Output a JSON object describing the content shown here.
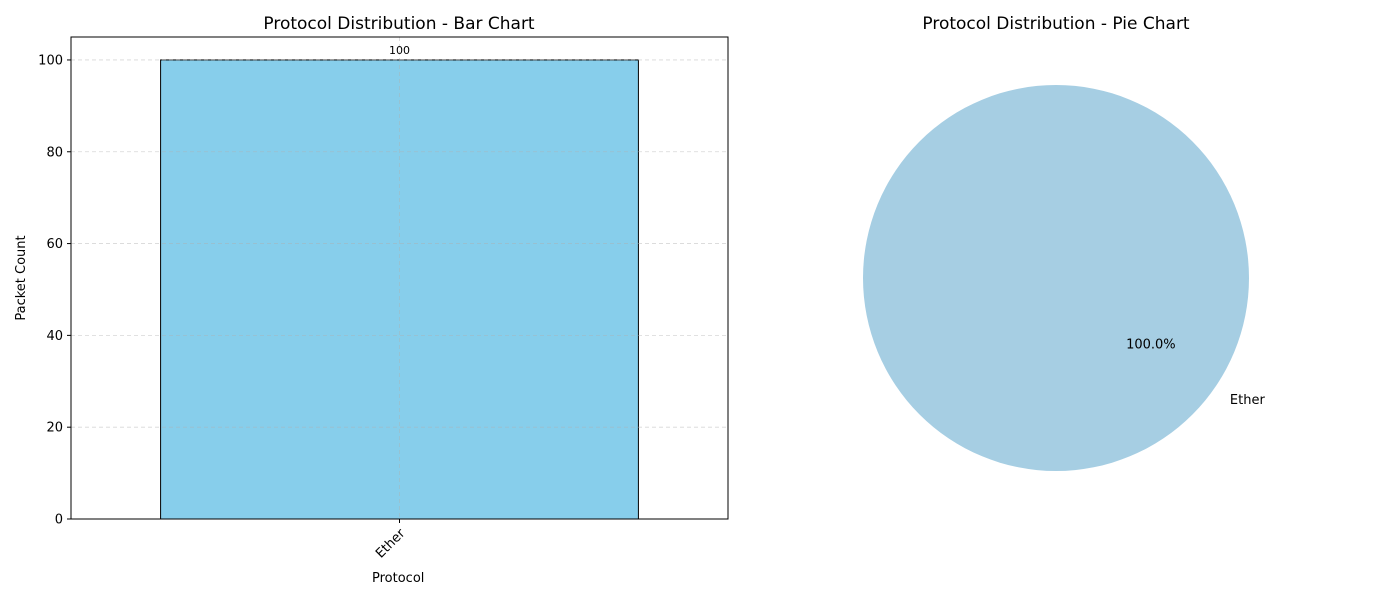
{
  "chart_data": [
    {
      "type": "bar",
      "title": "Protocol Distribution - Bar Chart",
      "xlabel": "Protocol",
      "ylabel": "Packet Count",
      "categories": [
        "Ether"
      ],
      "values": [
        100
      ],
      "value_labels": [
        "100"
      ],
      "ylim": [
        0,
        105
      ],
      "yticks": [
        0,
        20,
        40,
        60,
        80,
        100
      ],
      "grid": true,
      "bar_color": "#87CEEB",
      "edge_color": "#000000"
    },
    {
      "type": "pie",
      "title": "Protocol Distribution - Pie Chart",
      "labels": [
        "Ether"
      ],
      "values": [
        100
      ],
      "percent_labels": [
        "100.0%"
      ],
      "colors": [
        "#A6CEE3"
      ]
    }
  ]
}
